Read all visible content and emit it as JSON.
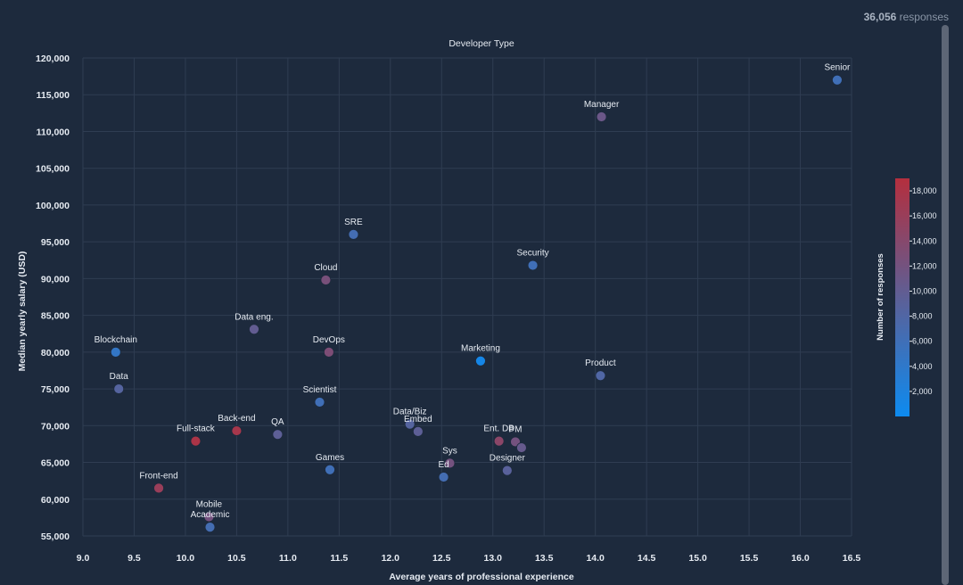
{
  "header": {
    "response_count": "36,056",
    "response_suffix": " responses"
  },
  "chart_data": {
    "type": "scatter",
    "title": "Developer Type",
    "xlabel": "Average years of professional experience",
    "ylabel": "Median yearly salary (USD)",
    "xlim": [
      9.0,
      16.5
    ],
    "ylim": [
      55000,
      120000
    ],
    "xticks": [
      9.0,
      9.5,
      10.0,
      10.5,
      11.0,
      11.5,
      12.0,
      12.5,
      13.0,
      13.5,
      14.0,
      14.5,
      15.0,
      15.5,
      16.0,
      16.5
    ],
    "xtick_labels": [
      "9.0",
      "9.5",
      "10.0",
      "10.5",
      "11.0",
      "11.5",
      "12.0",
      "12.5",
      "13.0",
      "13.5",
      "14.0",
      "14.5",
      "15.0",
      "15.5",
      "16.0",
      "16.5"
    ],
    "yticks": [
      55000,
      60000,
      65000,
      70000,
      75000,
      80000,
      85000,
      90000,
      95000,
      100000,
      105000,
      110000,
      115000,
      120000
    ],
    "ytick_labels": [
      "55,000",
      "60,000",
      "65,000",
      "70,000",
      "75,000",
      "80,000",
      "85,000",
      "90,000",
      "95,000",
      "100,000",
      "105,000",
      "110,000",
      "115,000",
      "120,000"
    ],
    "grid": true,
    "colorbar": {
      "title": "Number of responses",
      "min": 0,
      "max": 19000,
      "ticks": [
        2000,
        4000,
        6000,
        8000,
        10000,
        12000,
        14000,
        16000,
        18000
      ],
      "tick_labels": [
        "2,000",
        "4,000",
        "6,000",
        "8,000",
        "10,000",
        "12,000",
        "14,000",
        "16,000",
        "18,000"
      ],
      "colors": [
        "#0d8bf0",
        "#5d5f96",
        "#b42f3e"
      ]
    },
    "points": [
      {
        "label": "Senior",
        "x": 16.36,
        "y": 117000,
        "responses": 6000
      },
      {
        "label": "Manager",
        "x": 14.06,
        "y": 112000,
        "responses": 11000
      },
      {
        "label": "SRE",
        "x": 11.64,
        "y": 96000,
        "responses": 6500
      },
      {
        "label": "Security",
        "x": 13.39,
        "y": 91800,
        "responses": 6000
      },
      {
        "label": "Cloud",
        "x": 11.37,
        "y": 89800,
        "responses": 12500
      },
      {
        "label": "Data eng.",
        "x": 10.67,
        "y": 83100,
        "responses": 10000
      },
      {
        "label": "Blockchain",
        "x": 9.32,
        "y": 80000,
        "responses": 4500
      },
      {
        "label": "DevOps",
        "x": 11.4,
        "y": 80000,
        "responses": 13000
      },
      {
        "label": "Marketing",
        "x": 12.88,
        "y": 78800,
        "responses": 1000
      },
      {
        "label": "Product",
        "x": 14.05,
        "y": 76800,
        "responses": 8000
      },
      {
        "label": "Data",
        "x": 9.35,
        "y": 75000,
        "responses": 8500
      },
      {
        "label": "Scientist",
        "x": 11.31,
        "y": 73200,
        "responses": 6000
      },
      {
        "label": "Data/Biz",
        "x": 12.19,
        "y": 70200,
        "responses": 8500
      },
      {
        "label": "Embed",
        "x": 12.27,
        "y": 69200,
        "responses": 9500
      },
      {
        "label": "Back-end",
        "x": 10.5,
        "y": 69300,
        "responses": 17500
      },
      {
        "label": "QA",
        "x": 10.9,
        "y": 68800,
        "responses": 9500
      },
      {
        "label": "Full-stack",
        "x": 10.1,
        "y": 67900,
        "responses": 18000
      },
      {
        "label": "Ent. DB",
        "x": 13.06,
        "y": 67900,
        "responses": 14500
      },
      {
        "label": "PM",
        "x": 13.22,
        "y": 67800,
        "responses": 12000
      },
      {
        "label": "",
        "x": 13.28,
        "y": 67000,
        "responses": 10500
      },
      {
        "label": "Sys",
        "x": 12.58,
        "y": 64900,
        "responses": 12000
      },
      {
        "label": "Games",
        "x": 11.41,
        "y": 64000,
        "responses": 6000
      },
      {
        "label": "Designer",
        "x": 13.14,
        "y": 63900,
        "responses": 9000
      },
      {
        "label": "Ed",
        "x": 12.52,
        "y": 63000,
        "responses": 6500
      },
      {
        "label": "Front-end",
        "x": 9.74,
        "y": 61500,
        "responses": 16000
      },
      {
        "label": "Mobile",
        "x": 10.23,
        "y": 57600,
        "responses": 12000
      },
      {
        "label": "Academic",
        "x": 10.24,
        "y": 56200,
        "responses": 6500
      }
    ]
  }
}
